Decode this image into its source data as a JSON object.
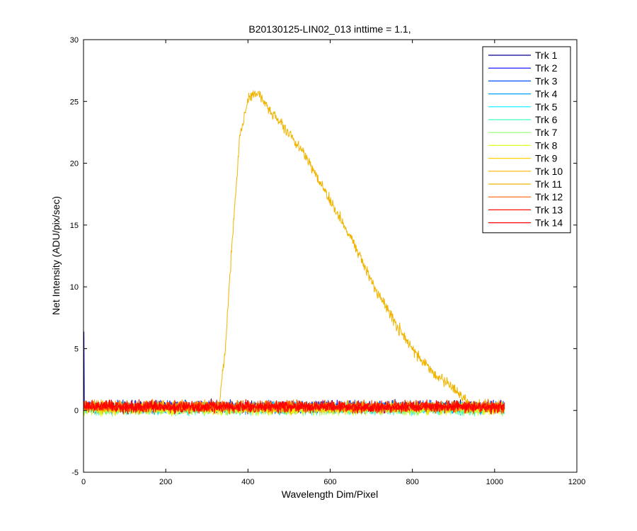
{
  "chart_data": {
    "type": "line",
    "title": "B20130125-LIN02_013 inttime = 1.1,",
    "xlabel": "Wavelength Dim/Pixel",
    "ylabel": "Net Intensity (ADU/pix/sec)",
    "xlim": [
      0,
      1200
    ],
    "ylim": [
      -5,
      30
    ],
    "xticks": [
      0,
      200,
      400,
      600,
      800,
      1000,
      1200
    ],
    "yticks": [
      -5,
      0,
      5,
      10,
      15,
      20,
      25,
      30
    ],
    "xtick_labels": [
      "0",
      "200",
      "400",
      "600",
      "800",
      "1000",
      "1200"
    ],
    "ytick_labels": [
      "-5",
      "0",
      "5",
      "10",
      "15",
      "20",
      "25",
      "30"
    ],
    "grid": false,
    "legend_position": "top-right",
    "x_range": [
      1,
      1024
    ],
    "series": [
      {
        "name": "Trk 1",
        "color": "#00008f",
        "baseline": 0.3,
        "noise": 0.35
      },
      {
        "name": "Trk 2",
        "color": "#0000ff",
        "baseline": 0.3,
        "noise": 0.35
      },
      {
        "name": "Trk 3",
        "color": "#0050ff",
        "baseline": 0.3,
        "noise": 0.35
      },
      {
        "name": "Trk 4",
        "color": "#00a0ff",
        "baseline": 0.2,
        "noise": 0.35
      },
      {
        "name": "Trk 5",
        "color": "#00f0ff",
        "baseline": 0.2,
        "noise": 0.35
      },
      {
        "name": "Trk 6",
        "color": "#40ffbf",
        "baseline": 0.1,
        "noise": 0.35
      },
      {
        "name": "Trk 7",
        "color": "#90ff70",
        "baseline": 0.1,
        "noise": 0.35
      },
      {
        "name": "Trk 8",
        "color": "#e0ff20",
        "baseline": 0.1,
        "noise": 0.35
      },
      {
        "name": "Trk 9",
        "color": "#ffd000",
        "baseline": 0.2,
        "noise": 0.35
      },
      {
        "name": "Trk 10",
        "color": "#ffb000",
        "baseline": 0.3,
        "noise": 0.35
      },
      {
        "name": "Trk 11",
        "color": "#f0b400",
        "baseline": 0.3,
        "noise": 0.35,
        "profile": {
          "x": [
            1,
            330,
            345,
            360,
            380,
            400,
            420,
            450,
            500,
            550,
            600,
            650,
            700,
            750,
            800,
            850,
            900,
            930,
            960,
            1024
          ],
          "y": [
            0.3,
            0.4,
            5,
            13,
            22,
            25.2,
            25.8,
            24.5,
            22.5,
            20,
            17,
            14,
            10.5,
            7.5,
            5,
            3,
            1.8,
            0.8,
            0.4,
            0.3
          ]
        }
      },
      {
        "name": "Trk 12",
        "color": "#ff6000",
        "baseline": 0.3,
        "noise": 0.35
      },
      {
        "name": "Trk 13",
        "color": "#ff1000",
        "baseline": 0.3,
        "noise": 0.35
      },
      {
        "name": "Trk 14",
        "color": "#ff0000",
        "baseline": 0.3,
        "noise": 0.35
      }
    ]
  }
}
